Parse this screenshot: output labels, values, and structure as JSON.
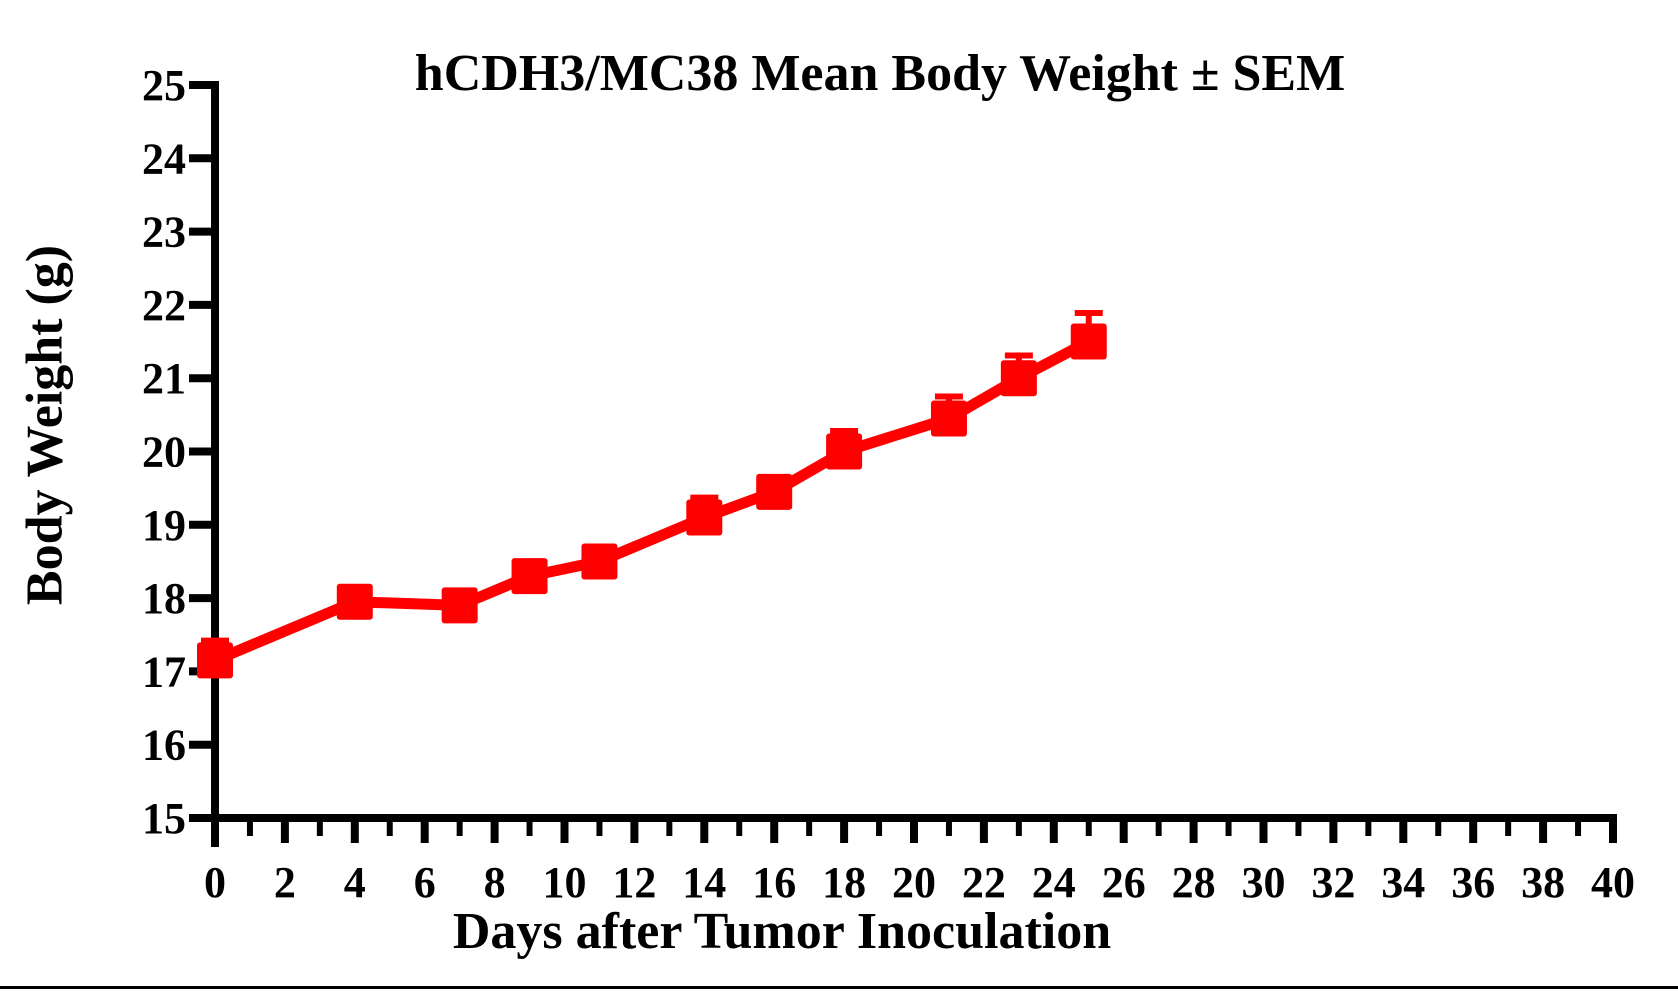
{
  "page": {
    "background_color": "#ffffff",
    "bottom_border_color": "#000000"
  },
  "chart_data": {
    "type": "line",
    "title": "hCDH3/MC38 Mean Body Weight ± SEM",
    "xlabel": "Days after Tumor Inoculation",
    "ylabel": "Body Weight (g)",
    "xlim": [
      0,
      40
    ],
    "ylim": [
      15,
      25
    ],
    "x_major_ticks": [
      0,
      2,
      4,
      6,
      8,
      10,
      12,
      14,
      16,
      18,
      20,
      22,
      24,
      26,
      28,
      30,
      32,
      34,
      36,
      38,
      40
    ],
    "x_minor_ticks": [
      1,
      3,
      5,
      7,
      9,
      11,
      13,
      15,
      17,
      19,
      21,
      23,
      25,
      27,
      29,
      31,
      33,
      35,
      37,
      39
    ],
    "y_ticks": [
      15,
      16,
      17,
      18,
      19,
      20,
      21,
      22,
      23,
      24,
      25
    ],
    "grid": false,
    "legend_position": "none",
    "axis_color": "#000000",
    "series": [
      {
        "name": "hCDH3/MC38 Mean Body Weight",
        "color": "#ff0000",
        "marker": "square",
        "error_bar_style": "upper SEM with cap",
        "x": [
          0,
          4,
          7,
          9,
          11,
          14,
          16,
          18,
          21,
          23,
          25
        ],
        "y": [
          17.15,
          17.95,
          17.9,
          18.3,
          18.5,
          19.1,
          19.45,
          20.0,
          20.45,
          21.0,
          21.5
        ],
        "sem": [
          0.27,
          0.15,
          0.15,
          0.15,
          0.15,
          0.27,
          0.15,
          0.28,
          0.3,
          0.31,
          0.39
        ]
      }
    ]
  }
}
